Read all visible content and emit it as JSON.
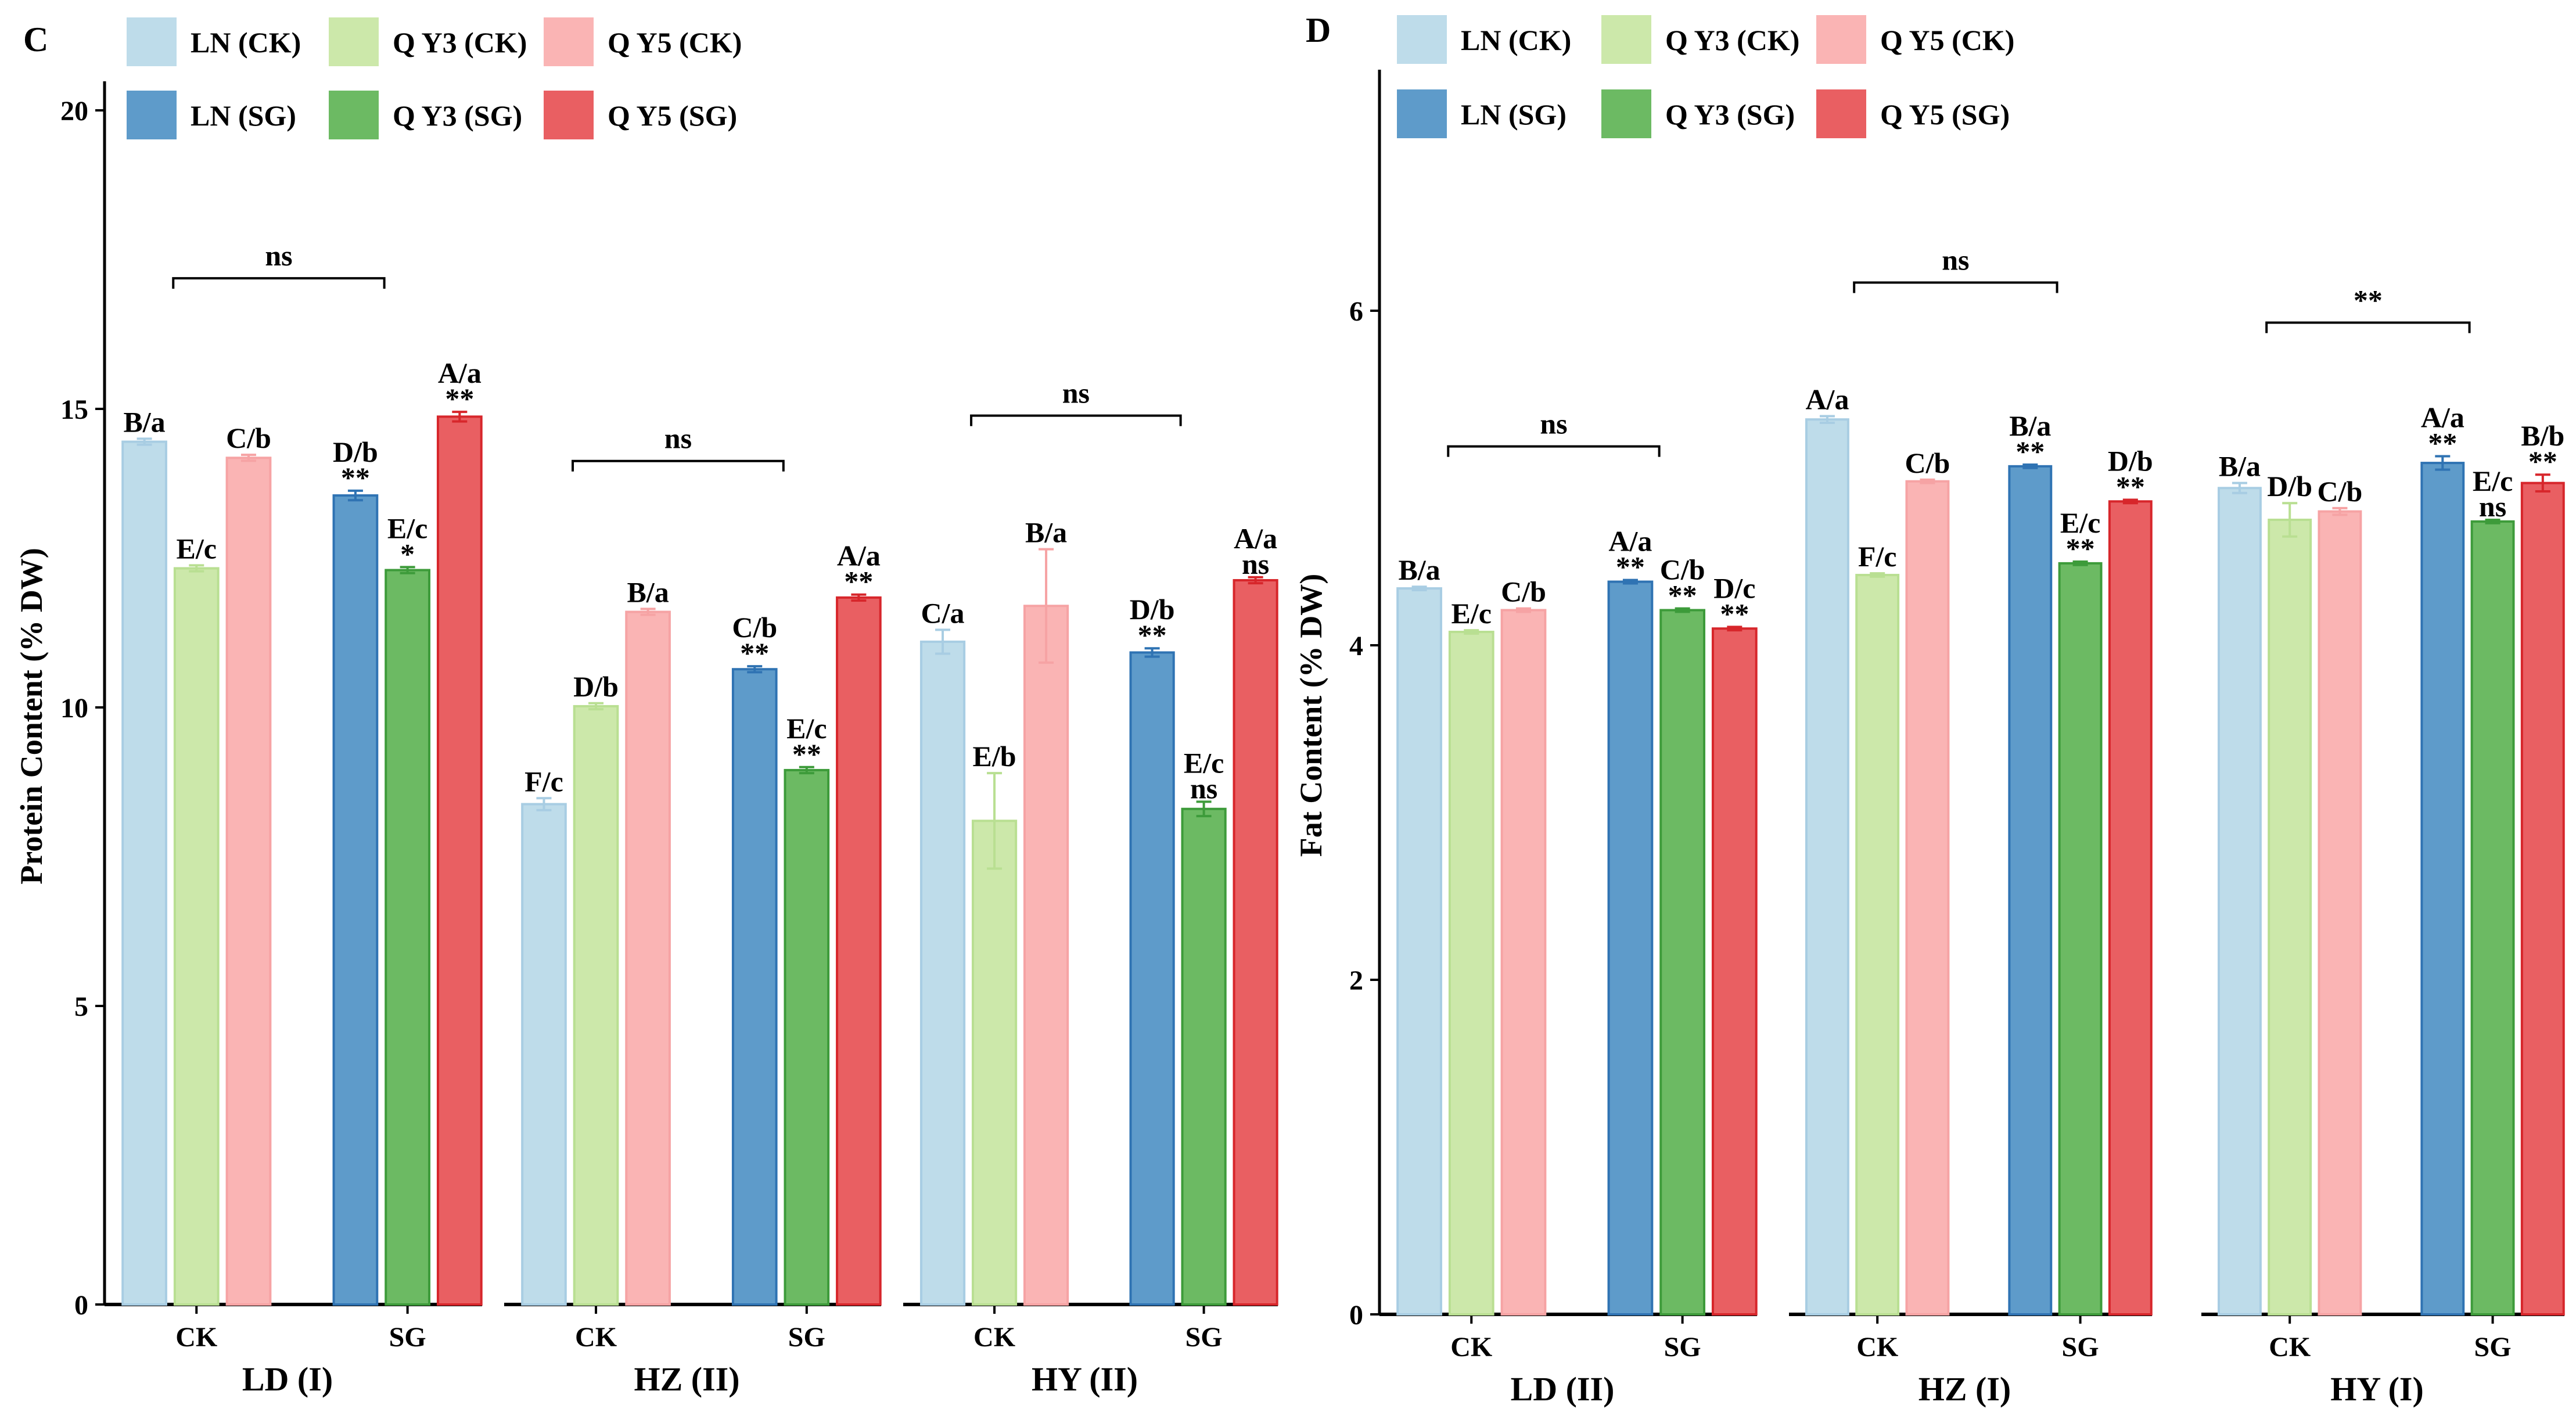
{
  "colors": {
    "LN (CK)": "#bedcea",
    "QY3 (CK)": "#cce8aa",
    "QY5 (CK)": "#fab4b4",
    "LN (SG)": "#5e9bca",
    "QY3 (SG)": "#6cba63",
    "QY5 (SG)": "#e95f62",
    "LN (CK)_edge": "#a8cde3",
    "QY3 (CK)_edge": "#b9df92",
    "QY5 (CK)_edge": "#f6a3a4",
    "LN (SG)_edge": "#2f73b3",
    "QY3 (SG)_edge": "#3d9b3a",
    "QY5 (SG)_edge": "#d7262b"
  },
  "panels": [
    {
      "label": "C",
      "legend_rows": [
        [
          "LN (CK)",
          "QY3 (CK)",
          "QY5 (CK)"
        ],
        [
          "LN (SG)",
          "QY3 (SG)",
          "QY5 (SG)"
        ]
      ],
      "legend_text": [
        [
          "LN (CK)",
          "Q Y3 (CK)",
          "Q Y5 (CK)"
        ],
        [
          "LN (SG)",
          "Q Y3 (SG)",
          "Q Y5 (SG)"
        ]
      ],
      "ylabel": "Protein Content (% DW)",
      "ylim": [
        0,
        20
      ],
      "yticks": [
        0,
        5,
        10,
        15,
        20
      ]
    },
    {
      "label": "D",
      "legend_rows": [
        [
          "LN (CK)",
          "QY3 (CK)",
          "QY5 (CK)"
        ],
        [
          "LN (SG)",
          "QY3 (SG)",
          "QY5 (SG)"
        ]
      ],
      "legend_text": [
        [
          "LN (CK)",
          "Q Y3 (CK)",
          "Q Y5 (CK)"
        ],
        [
          "LN (SG)",
          "Q Y3 (SG)",
          "Q Y5 (SG)"
        ]
      ],
      "ylabel": "Fat Content (% DW)",
      "ylim": [
        0,
        7.5
      ],
      "yticks": [
        0,
        2,
        4,
        6
      ]
    }
  ],
  "chart_data": [
    {
      "type": "bar",
      "title": "C",
      "ylabel": "Protein Content (% DW)",
      "ylim": [
        0,
        20
      ],
      "facets": [
        {
          "name": "LD (I)",
          "categories": [
            "CK",
            "SG"
          ],
          "bracket": "ns",
          "bars": [
            {
              "series": "LN (CK)",
              "value": 14.45,
              "err": 0.05,
              "label": "B/a",
              "sig": ""
            },
            {
              "series": "QY3 (CK)",
              "value": 12.33,
              "err": 0.05,
              "label": "E/c",
              "sig": ""
            },
            {
              "series": "QY5 (CK)",
              "value": 14.18,
              "err": 0.05,
              "label": "C/b",
              "sig": ""
            },
            {
              "series": "LN (SG)",
              "value": 13.55,
              "err": 0.08,
              "label": "D/b",
              "sig": "**"
            },
            {
              "series": "QY3 (SG)",
              "value": 12.3,
              "err": 0.05,
              "label": "E/c",
              "sig": "*"
            },
            {
              "series": "QY5 (SG)",
              "value": 14.87,
              "err": 0.08,
              "label": "A/a",
              "sig": "**"
            }
          ]
        },
        {
          "name": "HZ (II)",
          "categories": [
            "CK",
            "SG"
          ],
          "bracket": "ns",
          "bars": [
            {
              "series": "LN (CK)",
              "value": 8.38,
              "err": 0.1,
              "label": "F/c",
              "sig": ""
            },
            {
              "series": "QY3 (CK)",
              "value": 10.02,
              "err": 0.05,
              "label": "D/b",
              "sig": ""
            },
            {
              "series": "QY5 (CK)",
              "value": 11.6,
              "err": 0.05,
              "label": "B/a",
              "sig": ""
            },
            {
              "series": "LN (SG)",
              "value": 10.64,
              "err": 0.05,
              "label": "C/b",
              "sig": "**"
            },
            {
              "series": "QY3 (SG)",
              "value": 8.95,
              "err": 0.05,
              "label": "E/c",
              "sig": "**"
            },
            {
              "series": "QY5 (SG)",
              "value": 11.84,
              "err": 0.05,
              "label": "A/a",
              "sig": "**"
            }
          ]
        },
        {
          "name": "HY (II)",
          "categories": [
            "CK",
            "SG"
          ],
          "bracket": "ns",
          "bars": [
            {
              "series": "LN (CK)",
              "value": 11.1,
              "err": 0.2,
              "label": "C/a",
              "sig": ""
            },
            {
              "series": "QY3 (CK)",
              "value": 8.1,
              "err": 0.8,
              "label": "E/b",
              "sig": ""
            },
            {
              "series": "QY5 (CK)",
              "value": 11.7,
              "err": 0.95,
              "label": "B/a",
              "sig": ""
            },
            {
              "series": "LN (SG)",
              "value": 10.92,
              "err": 0.07,
              "label": "D/b",
              "sig": "**"
            },
            {
              "series": "QY3 (SG)",
              "value": 8.3,
              "err": 0.12,
              "label": "E/c",
              "sig": "ns"
            },
            {
              "series": "QY5 (SG)",
              "value": 12.13,
              "err": 0.05,
              "label": "A/a",
              "sig": "ns"
            }
          ]
        }
      ]
    },
    {
      "type": "bar",
      "title": "D",
      "ylabel": "Fat Content (% DW)",
      "ylim": [
        0,
        7.5
      ],
      "facets": [
        {
          "name": "LD (II)",
          "categories": [
            "CK",
            "SG"
          ],
          "bracket": "ns",
          "bars": [
            {
              "series": "LN (CK)",
              "value": 4.34,
              "err": 0.01,
              "label": "B/a",
              "sig": ""
            },
            {
              "series": "QY3 (CK)",
              "value": 4.08,
              "err": 0.01,
              "label": "E/c",
              "sig": ""
            },
            {
              "series": "QY5 (CK)",
              "value": 4.21,
              "err": 0.01,
              "label": "C/b",
              "sig": ""
            },
            {
              "series": "LN (SG)",
              "value": 4.38,
              "err": 0.01,
              "label": "A/a",
              "sig": "**"
            },
            {
              "series": "QY3 (SG)",
              "value": 4.21,
              "err": 0.01,
              "label": "C/b",
              "sig": "**"
            },
            {
              "series": "QY5 (SG)",
              "value": 4.1,
              "err": 0.01,
              "label": "D/c",
              "sig": "**"
            }
          ]
        },
        {
          "name": "HZ (I)",
          "categories": [
            "CK",
            "SG"
          ],
          "bracket": "ns",
          "bars": [
            {
              "series": "LN (CK)",
              "value": 5.35,
              "err": 0.02,
              "label": "A/a",
              "sig": ""
            },
            {
              "series": "QY3 (CK)",
              "value": 4.42,
              "err": 0.01,
              "label": "F/c",
              "sig": ""
            },
            {
              "series": "QY5 (CK)",
              "value": 4.98,
              "err": 0.01,
              "label": "C/b",
              "sig": ""
            },
            {
              "series": "LN (SG)",
              "value": 5.07,
              "err": 0.01,
              "label": "B/a",
              "sig": "**"
            },
            {
              "series": "QY3 (SG)",
              "value": 4.49,
              "err": 0.01,
              "label": "E/c",
              "sig": "**"
            },
            {
              "series": "QY5 (SG)",
              "value": 4.86,
              "err": 0.01,
              "label": "D/b",
              "sig": "**"
            }
          ]
        },
        {
          "name": "HY (I)",
          "categories": [
            "CK",
            "SG"
          ],
          "bracket": "**",
          "bars": [
            {
              "series": "LN (CK)",
              "value": 4.94,
              "err": 0.03,
              "label": "B/a",
              "sig": ""
            },
            {
              "series": "QY3 (CK)",
              "value": 4.75,
              "err": 0.1,
              "label": "D/b",
              "sig": ""
            },
            {
              "series": "QY5 (CK)",
              "value": 4.8,
              "err": 0.02,
              "label": "C/b",
              "sig": ""
            },
            {
              "series": "LN (SG)",
              "value": 5.09,
              "err": 0.04,
              "label": "A/a",
              "sig": "**"
            },
            {
              "series": "QY3 (SG)",
              "value": 4.74,
              "err": 0.01,
              "label": "E/c",
              "sig": "ns"
            },
            {
              "series": "QY5 (SG)",
              "value": 4.97,
              "err": 0.05,
              "label": "B/b",
              "sig": "**"
            }
          ]
        }
      ]
    }
  ]
}
